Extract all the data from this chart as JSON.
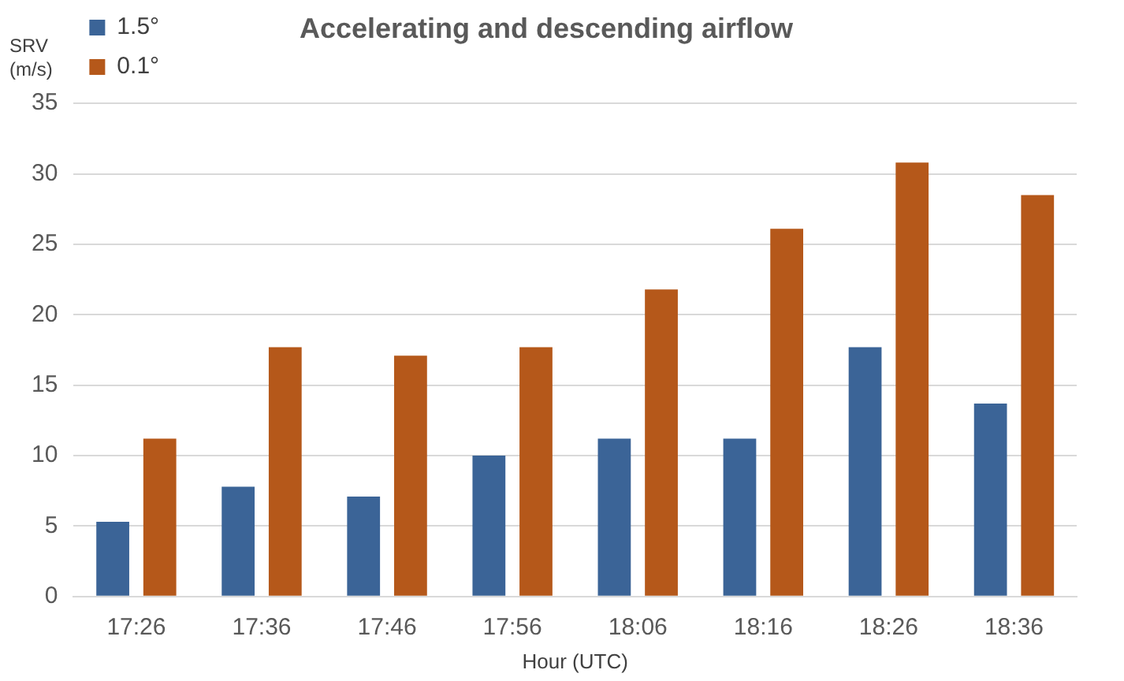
{
  "chart_data": {
    "type": "bar",
    "title": "Accelerating and descending airflow",
    "xlabel": "Hour (UTC)",
    "ylabel": "SRV (m/s)",
    "categories": [
      "17:26",
      "17:36",
      "17:46",
      "17:56",
      "18:06",
      "18:16",
      "18:26",
      "18:36"
    ],
    "series": [
      {
        "name": "1.5°",
        "color": "#3b6497",
        "values": [
          5.3,
          7.8,
          7.1,
          10.0,
          11.2,
          11.2,
          17.7,
          13.7
        ]
      },
      {
        "name": "0.1°",
        "color": "#b5581a",
        "values": [
          11.2,
          17.7,
          17.1,
          17.7,
          21.8,
          26.1,
          30.8,
          28.5
        ]
      }
    ],
    "ylim": [
      0,
      35
    ],
    "yticks": [
      0,
      5,
      10,
      15,
      20,
      25,
      30,
      35
    ],
    "grid": "y",
    "legend": "top left"
  }
}
